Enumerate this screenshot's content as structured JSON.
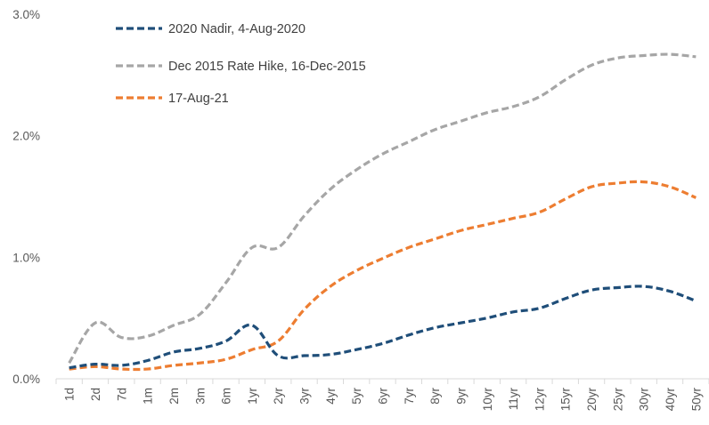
{
  "chart_data": {
    "type": "line",
    "title": "",
    "xlabel": "",
    "ylabel": "",
    "categories": [
      "1d",
      "2d",
      "7d",
      "1m",
      "2m",
      "3m",
      "6m",
      "1yr",
      "2yr",
      "3yr",
      "4yr",
      "5yr",
      "6yr",
      "7yr",
      "8yr",
      "9yr",
      "10yr",
      "11yr",
      "12yr",
      "15yr",
      "20yr",
      "25yr",
      "30yr",
      "40yr",
      "50yr"
    ],
    "ylim": [
      0,
      3.0
    ],
    "yticks": [
      {
        "value": 0,
        "label": "0.0%"
      },
      {
        "value": 1.0,
        "label": "1.0%"
      },
      {
        "value": 2.0,
        "label": "2.0%"
      },
      {
        "value": 3.0,
        "label": "3.0%"
      }
    ],
    "grid": false,
    "legend_position": "top-left",
    "line_style": "dashed",
    "series": [
      {
        "name": "2020 Nadir, 4-Aug-2020",
        "color": "#1f4e79",
        "values": [
          0.09,
          0.12,
          0.11,
          0.15,
          0.22,
          0.25,
          0.31,
          0.44,
          0.19,
          0.19,
          0.2,
          0.24,
          0.29,
          0.36,
          0.42,
          0.46,
          0.5,
          0.55,
          0.58,
          0.66,
          0.73,
          0.75,
          0.76,
          0.72,
          0.64
        ]
      },
      {
        "name": "Dec 2015 Rate Hike, 16-Dec-2015",
        "color": "#a6a6a6",
        "values": [
          0.13,
          0.46,
          0.34,
          0.35,
          0.44,
          0.53,
          0.79,
          1.08,
          1.08,
          1.34,
          1.56,
          1.72,
          1.85,
          1.95,
          2.05,
          2.12,
          2.19,
          2.24,
          2.32,
          2.46,
          2.58,
          2.64,
          2.66,
          2.67,
          2.65
        ]
      },
      {
        "name": "17-Aug-21",
        "color": "#ed7d31",
        "values": [
          0.08,
          0.1,
          0.08,
          0.08,
          0.11,
          0.13,
          0.16,
          0.24,
          0.31,
          0.57,
          0.76,
          0.89,
          0.99,
          1.08,
          1.15,
          1.22,
          1.27,
          1.32,
          1.37,
          1.48,
          1.58,
          1.61,
          1.62,
          1.58,
          1.49
        ]
      }
    ]
  }
}
